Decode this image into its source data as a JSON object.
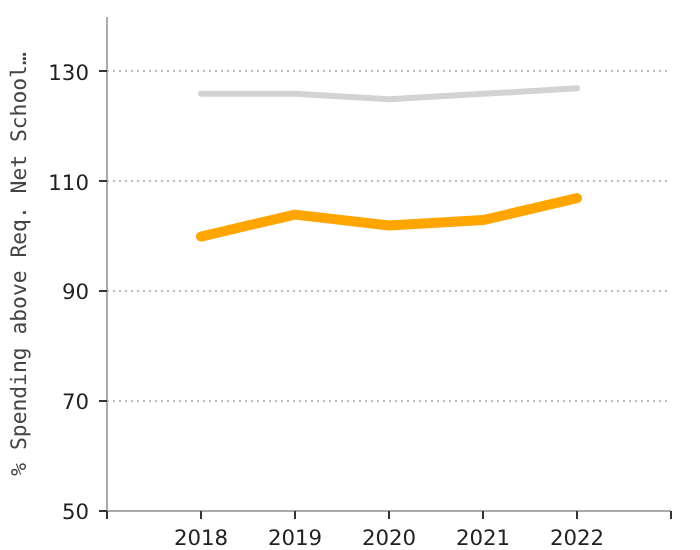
{
  "chart_data": {
    "type": "line",
    "ylabel": "% Spending above Req. Net School…",
    "x": [
      2018,
      2019,
      2020,
      2021,
      2022
    ],
    "series": [
      {
        "color": "#d3d3d3",
        "values": [
          126,
          126,
          125,
          126,
          127
        ]
      },
      {
        "color": "#ffa500",
        "values": [
          100,
          104,
          102,
          103,
          107
        ]
      }
    ],
    "xlim": [
      2017,
      2023
    ],
    "xticks": [
      {
        "value": 2017,
        "label": null
      },
      2018,
      2019,
      2020,
      2021,
      2022,
      {
        "value": 2023,
        "label": null
      }
    ],
    "ylim": [
      50,
      140
    ],
    "yticks": [
      50,
      70,
      90,
      110,
      130
    ],
    "grid": "y",
    "line_style": "solid"
  }
}
